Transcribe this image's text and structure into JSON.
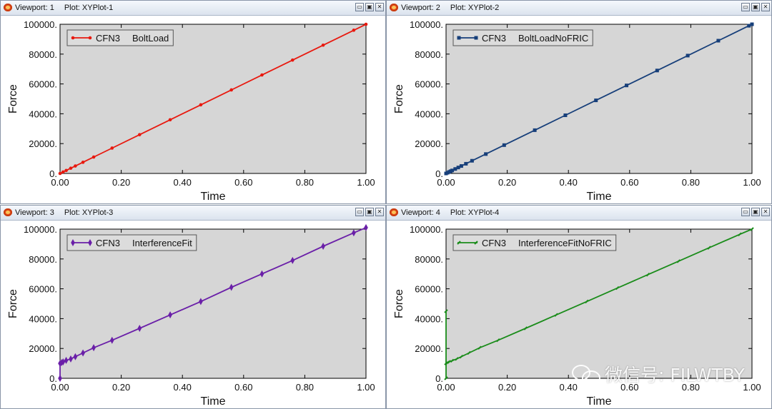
{
  "viewports": [
    {
      "id": 0,
      "label": "Viewport: 1",
      "plot": "Plot: XYPlot-1"
    },
    {
      "id": 1,
      "label": "Viewport: 2",
      "plot": "Plot: XYPlot-2"
    },
    {
      "id": 2,
      "label": "Viewport: 3",
      "plot": "Plot: XYPlot-3"
    },
    {
      "id": 3,
      "label": "Viewport: 4",
      "plot": "Plot: XYPlot-4"
    }
  ],
  "window_buttons": {
    "minimize": "▭",
    "restore": "▣",
    "close": "✕"
  },
  "watermark": "微信号: FILWTBY",
  "chart_data": [
    {
      "type": "line",
      "xlabel": "Time",
      "ylabel": "Force",
      "xlim": [
        0,
        1
      ],
      "ylim": [
        0,
        100000
      ],
      "xticks": [
        "0.00",
        "0.20",
        "0.40",
        "0.60",
        "0.80",
        "1.00"
      ],
      "yticks": [
        "0.",
        "20000.",
        "40000.",
        "60000.",
        "80000.",
        "100000."
      ],
      "grid": false,
      "legend_position": "top-left",
      "series": [
        {
          "name": "CFN3 BoltLoad",
          "legend_parts": [
            "CFN3",
            "BoltLoad"
          ],
          "color": "#e8190f",
          "marker": "dot",
          "x": [
            0,
            0.01,
            0.02,
            0.035,
            0.05,
            0.075,
            0.11,
            0.17,
            0.26,
            0.36,
            0.46,
            0.56,
            0.66,
            0.76,
            0.86,
            0.96,
            1.0
          ],
          "y": [
            0,
            1000,
            2000,
            3500,
            5000,
            7500,
            11000,
            17000,
            26000,
            36000,
            46000,
            56000,
            66000,
            76000,
            86000,
            96000,
            100000
          ]
        }
      ]
    },
    {
      "type": "line",
      "xlabel": "Time",
      "ylabel": "Force",
      "xlim": [
        0,
        1
      ],
      "ylim": [
        0,
        100000
      ],
      "xticks": [
        "0.00",
        "0.20",
        "0.40",
        "0.60",
        "0.80",
        "1.00"
      ],
      "yticks": [
        "0.",
        "20000.",
        "40000.",
        "60000.",
        "80000.",
        "100000."
      ],
      "grid": false,
      "legend_position": "top-left",
      "series": [
        {
          "name": "CFN3 BoltLoadNoFRIC",
          "legend_parts": [
            "CFN3",
            "BoltLoadNoFRIC"
          ],
          "color": "#173f7a",
          "marker": "square",
          "x": [
            0,
            0.005,
            0.01,
            0.015,
            0.02,
            0.03,
            0.04,
            0.05,
            0.065,
            0.085,
            0.13,
            0.19,
            0.29,
            0.39,
            0.49,
            0.59,
            0.69,
            0.79,
            0.89,
            0.99,
            1.0
          ],
          "y": [
            0,
            500,
            1000,
            1500,
            2000,
            3000,
            4000,
            5000,
            6500,
            8500,
            13000,
            19000,
            29000,
            39000,
            49000,
            59000,
            69000,
            79000,
            89000,
            99000,
            100000
          ]
        }
      ]
    },
    {
      "type": "line",
      "xlabel": "Time",
      "ylabel": "Force",
      "xlim": [
        0,
        1
      ],
      "ylim": [
        0,
        100000
      ],
      "xticks": [
        "0.00",
        "0.20",
        "0.40",
        "0.60",
        "0.80",
        "1.00"
      ],
      "yticks": [
        "0.",
        "20000.",
        "40000.",
        "60000.",
        "80000.",
        "100000."
      ],
      "grid": false,
      "legend_position": "top-left",
      "series": [
        {
          "name": "CFN3 InterferenceFit",
          "legend_parts": [
            "CFN3",
            "InterferenceFit"
          ],
          "color": "#6a1fa8",
          "marker": "diamond",
          "x": [
            0,
            0.0,
            0.005,
            0.01,
            0.02,
            0.035,
            0.05,
            0.075,
            0.11,
            0.17,
            0.26,
            0.36,
            0.46,
            0.56,
            0.66,
            0.76,
            0.86,
            0.96,
            1.0
          ],
          "y": [
            0,
            10000,
            10500,
            11000,
            12000,
            13000,
            14500,
            17000,
            20500,
            25500,
            33500,
            42500,
            51500,
            61000,
            70000,
            79000,
            88500,
            97500,
            101000
          ]
        }
      ]
    },
    {
      "type": "line",
      "xlabel": "Time",
      "ylabel": "Force",
      "xlim": [
        0,
        1
      ],
      "ylim": [
        0,
        100000
      ],
      "xticks": [
        "0.00",
        "0.20",
        "0.40",
        "0.60",
        "0.80",
        "1.00"
      ],
      "yticks": [
        "0.",
        "20000.",
        "40000.",
        "60000.",
        "80000.",
        "100000."
      ],
      "grid": false,
      "legend_position": "top-left",
      "series": [
        {
          "name": "CFN3 InterferenceFitNoFRIC",
          "legend_parts": [
            "CFN3",
            "InterferenceFitNoFRIC"
          ],
          "color": "#1a8c1a",
          "marker": "tick",
          "x": [
            0,
            0.0,
            0.0,
            0.005,
            0.01,
            0.02,
            0.035,
            0.05,
            0.075,
            0.11,
            0.17,
            0.26,
            0.36,
            0.46,
            0.56,
            0.66,
            0.76,
            0.86,
            0.96,
            1.0
          ],
          "y": [
            0,
            45000,
            10000,
            10500,
            11000,
            11800,
            13000,
            14500,
            17000,
            20500,
            25500,
            33500,
            42500,
            51500,
            60500,
            69500,
            78500,
            87500,
            96500,
            100000
          ]
        }
      ]
    }
  ]
}
